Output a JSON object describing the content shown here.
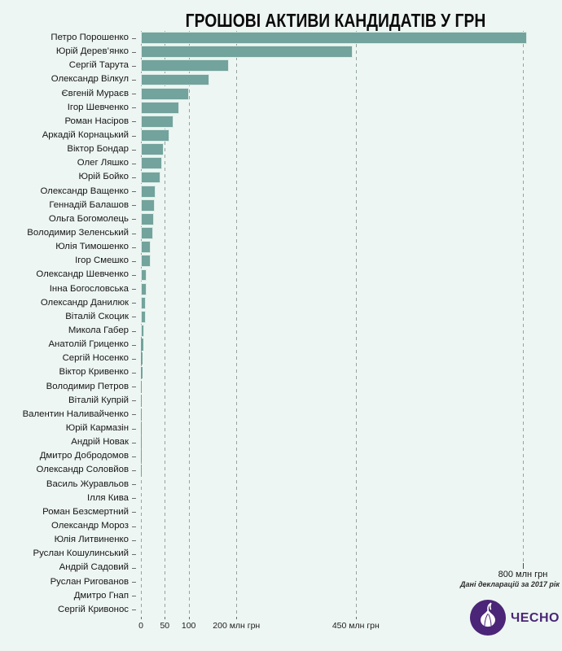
{
  "chart_data": {
    "type": "bar",
    "orientation": "horizontal",
    "title": "ГРОШОВІ АКТИВИ КАНДИДАТІВ У ГРН",
    "unit": "млн грн",
    "xlabel": "",
    "ylabel": "",
    "xlim": [
      0,
      880
    ],
    "grid": "vertical-dashed",
    "x_ticks": [
      {
        "value": 0,
        "label": "0"
      },
      {
        "value": 50,
        "label": "50"
      },
      {
        "value": 100,
        "label": "100"
      },
      {
        "value": 200,
        "label": "200 млн грн"
      },
      {
        "value": 450,
        "label": "450 млн грн"
      }
    ],
    "annotation": {
      "value": 800,
      "label": "800 млн грн"
    },
    "source_note": "Дані декларацій за 2017 рік",
    "categories": [
      "Петро Порошенко",
      "Юрій Дерев’янко",
      "Сергій Тарута",
      "Олександр Вілкул",
      "Євгеній Мураєв",
      "Ігор Шевченко",
      "Роман Насіров",
      "Аркадій Корнацький",
      "Віктор Бондар",
      "Олег Ляшко",
      "Юрій Бойко",
      "Олександр Ващенко",
      "Геннадій Балашов",
      "Ольга Богомолець",
      "Володимир Зеленський",
      "Юлія Тимошенко",
      "Ігор Смешко",
      "Олександр Шевченко",
      "Інна Богословська",
      "Олександр Данилюк",
      "Віталій Скоцик",
      "Микола Габер",
      "Анатолій Гриценко",
      "Сергій Носенко",
      "Віктор Кривенко",
      "Володимир Петров",
      "Віталій Купрій",
      "Валентин Наливайченко",
      "Юрій Кармазін",
      "Андрій Новак",
      "Дмитро Добродомов",
      "Олександр Соловйов",
      "Василь Журавльов",
      "Ілля Кива",
      "Роман Безсмертний",
      "Олександр Мороз",
      "Юлія Литвиненко",
      "Руслан Кошулинський",
      "Андрій Садовий",
      "Руслан Ригованов",
      "Дмитро Гнап",
      "Сергій Кривонос"
    ],
    "values": [
      809,
      443,
      185,
      143,
      100,
      81,
      68,
      59,
      47,
      45,
      41,
      31,
      29,
      27,
      25,
      21,
      20,
      12,
      12,
      11,
      10,
      7,
      5,
      3,
      3,
      2,
      2,
      2,
      1.5,
      1.5,
      1,
      1,
      0.5,
      0.4,
      0.3,
      0.3,
      0.2,
      0.2,
      0.2,
      0.1,
      0.1,
      0.1
    ]
  },
  "logo": {
    "brand": "ЧЕСНО"
  },
  "colors": {
    "background": "#edf6f2",
    "bar": "#72a39c",
    "bar_edge": "#dcebe7",
    "grid": "#95a39f",
    "text": "#161616",
    "brand_purple": "#4b2577"
  }
}
